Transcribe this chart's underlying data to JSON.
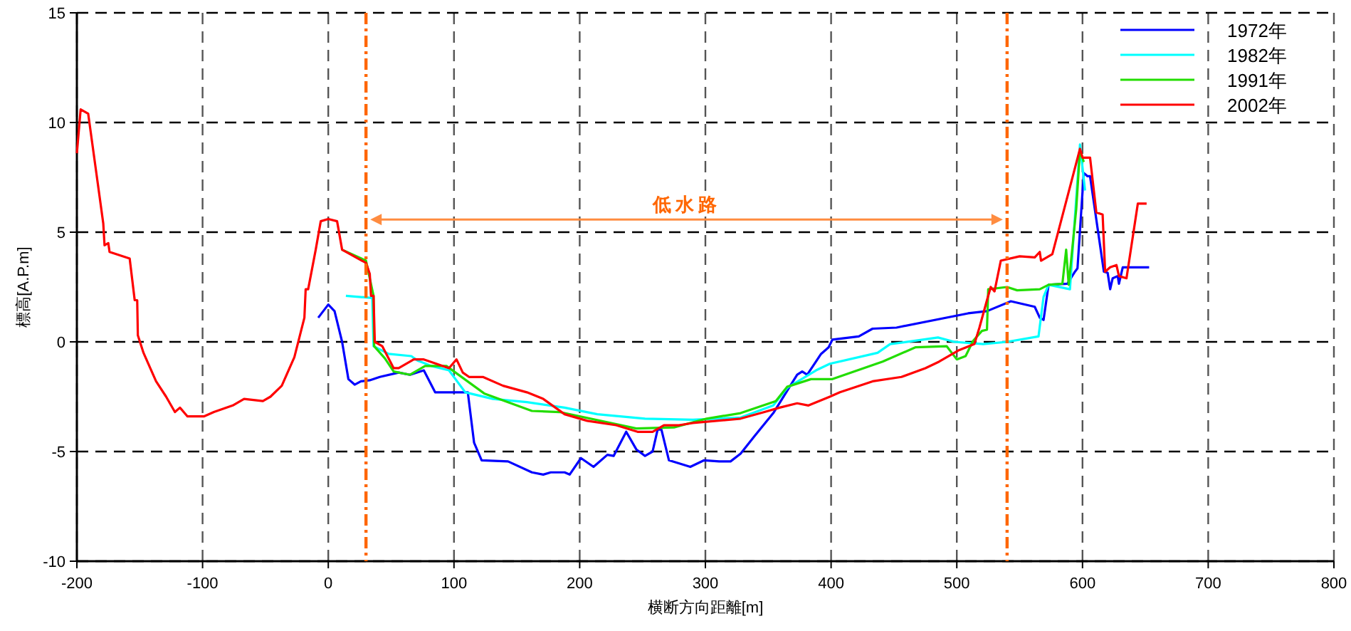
{
  "chart_data": {
    "type": "line",
    "xlabel": "横断方向距離[m]",
    "ylabel": "標高[A.P.m]",
    "xlim": [
      -200,
      800
    ],
    "xticks": [
      -200,
      -100,
      0,
      100,
      200,
      300,
      400,
      500,
      600,
      700,
      800
    ],
    "ylim": [
      -10,
      15
    ],
    "yticks": [
      -10,
      -5,
      0,
      5,
      10,
      15
    ],
    "grid": true,
    "legend": "top right",
    "marker": "none",
    "line_style": "solid",
    "ref_lines": [
      {
        "axis": "x",
        "value": 30,
        "color": "#ff6600",
        "line_style": "dashdot"
      },
      {
        "axis": "x",
        "value": 540,
        "color": "#ff6600",
        "line_style": "dashdot"
      }
    ],
    "annotations": [
      "低水路"
    ],
    "series": [
      {
        "name": "1972年",
        "color": "#0000ff",
        "x": [
          -8,
          0,
          5,
          11,
          16,
          21,
          26,
          33,
          41,
          56,
          65,
          76,
          85,
          111,
          116,
          122,
          143,
          162,
          171,
          177,
          188,
          192,
          201,
          211,
          222,
          227,
          237,
          245,
          252,
          258,
          262,
          265,
          271,
          288,
          299,
          311,
          320,
          328,
          339,
          354,
          373,
          377,
          381,
          392,
          398,
          401,
          422,
          433,
          452,
          509,
          524,
          543,
          562,
          566,
          569,
          573,
          588,
          594,
          596,
          601,
          604,
          606,
          617,
          620,
          622,
          624,
          628,
          629,
          632,
          653
        ],
        "values": [
          1.1,
          1.7,
          1.4,
          0,
          -1.7,
          -1.95,
          -1.8,
          -1.75,
          -1.6,
          -1.4,
          -1.5,
          -1.3,
          -2.3,
          -2.3,
          -4.6,
          -5.4,
          -5.45,
          -5.95,
          -6.05,
          -5.95,
          -5.95,
          -6.05,
          -5.3,
          -5.7,
          -5.15,
          -5.2,
          -4.1,
          -4.9,
          -5.2,
          -5.0,
          -4.0,
          -4.0,
          -5.4,
          -5.7,
          -5.4,
          -5.45,
          -5.45,
          -5.1,
          -4.3,
          -3.25,
          -1.5,
          -1.35,
          -1.5,
          -0.55,
          -0.25,
          0.1,
          0.25,
          0.6,
          0.65,
          1.3,
          1.4,
          1.85,
          1.6,
          1.1,
          1.0,
          2.6,
          2.65,
          3.2,
          3.35,
          7.7,
          7.55,
          7.55,
          3.2,
          3.15,
          2.4,
          2.9,
          3.0,
          2.65,
          3.4,
          3.4
        ]
      },
      {
        "name": "1982年",
        "color": "#00ffff",
        "x": [
          14,
          35,
          36,
          48,
          66,
          71,
          82,
          96,
          109,
          131,
          158,
          188,
          214,
          252,
          290,
          328,
          354,
          365,
          388,
          399,
          437,
          447,
          467,
          485,
          498,
          521,
          540,
          565,
          569,
          573,
          590,
          598,
          602
        ],
        "values": [
          2.1,
          2.0,
          -0.2,
          -0.55,
          -0.65,
          -0.85,
          -1.1,
          -1.3,
          -2.3,
          -2.6,
          -2.75,
          -3.0,
          -3.3,
          -3.5,
          -3.55,
          -3.45,
          -2.9,
          -2.1,
          -1.3,
          -1.0,
          -0.5,
          -0.1,
          0.05,
          0.2,
          0,
          -0.1,
          0,
          0.25,
          2.05,
          2.6,
          2.4,
          9.0,
          6.9
        ]
      },
      {
        "name": "1991年",
        "color": "#22dd00",
        "x": [
          11,
          30,
          36,
          36.5,
          45,
          52,
          65,
          77,
          94,
          124,
          162,
          184,
          245,
          275,
          301,
          328,
          356,
          365,
          384,
          401,
          441,
          467,
          492,
          500,
          507,
          513,
          520,
          524,
          525,
          540,
          548,
          566,
          573,
          584,
          587,
          589,
          595,
          598,
          601
        ],
        "values": [
          4.2,
          3.7,
          2.1,
          -0.2,
          -0.75,
          -1.35,
          -1.5,
          -1.1,
          -1.1,
          -2.35,
          -3.15,
          -3.2,
          -3.95,
          -3.9,
          -3.5,
          -3.25,
          -2.7,
          -2.05,
          -1.7,
          -1.7,
          -0.9,
          -0.25,
          -0.2,
          -0.8,
          -0.65,
          0.05,
          0.5,
          0.55,
          2.4,
          2.5,
          2.35,
          2.4,
          2.6,
          2.65,
          4.2,
          2.6,
          6.05,
          8.75,
          8.2
        ]
      },
      {
        "name": "2002年",
        "color": "#ff0000",
        "x": [
          -200,
          -197,
          -191,
          -179,
          -178,
          -175,
          -174,
          -158,
          -154,
          -152,
          -151.5,
          -147,
          -137,
          -129,
          -122,
          -118,
          -112,
          -99,
          -91,
          -76,
          -67,
          -52,
          -46,
          -37,
          -27,
          -23,
          -19,
          -18,
          -16,
          -10,
          -6,
          0,
          7,
          11,
          30,
          33,
          34,
          36,
          37,
          43,
          52,
          56,
          68,
          76,
          96,
          102,
          107,
          112,
          123,
          139,
          158,
          171,
          188,
          206,
          229,
          246,
          258,
          267,
          279,
          290,
          328,
          347,
          359,
          373,
          382,
          399,
          407,
          433,
          456,
          475,
          486,
          501,
          514,
          518,
          524,
          527,
          530,
          535,
          550,
          562,
          566,
          567,
          576,
          598,
          600,
          606,
          611,
          616,
          618,
          622,
          627,
          629,
          635,
          644,
          651
        ],
        "values": [
          8.6,
          10.6,
          10.4,
          5.4,
          4.4,
          4.5,
          4.1,
          3.8,
          1.9,
          1.9,
          0.3,
          -0.5,
          -1.8,
          -2.5,
          -3.2,
          -3.0,
          -3.4,
          -3.4,
          -3.2,
          -2.9,
          -2.6,
          -2.7,
          -2.5,
          -2.0,
          -0.7,
          0.2,
          1.1,
          2.4,
          2.4,
          4.2,
          5.5,
          5.6,
          5.5,
          4.2,
          3.6,
          3.1,
          2.1,
          2.1,
          0,
          -0.2,
          -1.2,
          -1.2,
          -0.8,
          -0.8,
          -1.2,
          -0.8,
          -1.4,
          -1.6,
          -1.6,
          -2.0,
          -2.3,
          -2.6,
          -3.3,
          -3.6,
          -3.8,
          -4.1,
          -4.1,
          -3.8,
          -3.8,
          -3.7,
          -3.5,
          -3.2,
          -3.0,
          -2.8,
          -2.9,
          -2.5,
          -2.3,
          -1.8,
          -1.6,
          -1.2,
          -0.9,
          -0.4,
          -0.1,
          0.65,
          1.9,
          2.5,
          2.3,
          3.7,
          3.9,
          3.85,
          4.1,
          3.7,
          4.0,
          8.8,
          8.4,
          8.4,
          5.9,
          5.8,
          3.2,
          3.4,
          3.5,
          3.0,
          2.9,
          6.3,
          6.3
        ]
      }
    ]
  }
}
